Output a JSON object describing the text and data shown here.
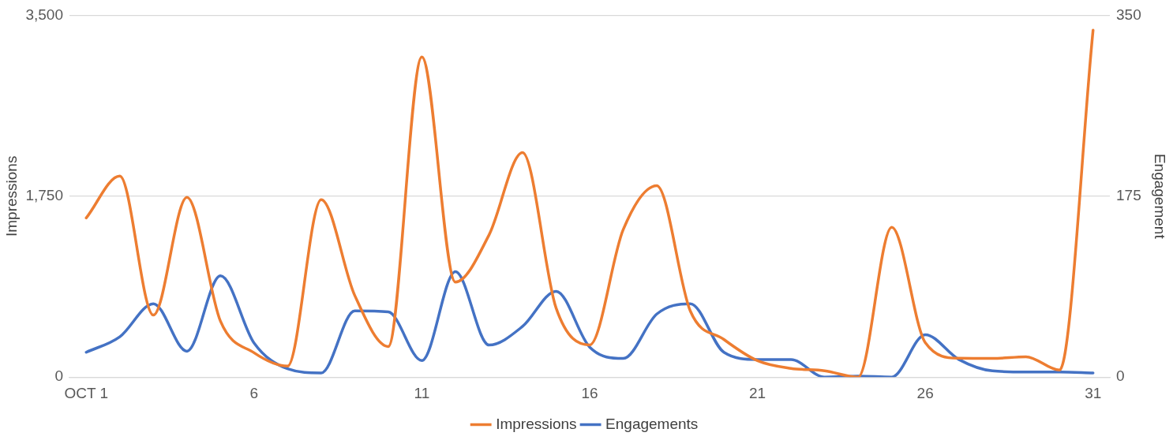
{
  "chart_data": {
    "type": "line",
    "ylabel": "Impressions",
    "y2label": "Engagement",
    "categories": [
      "OCT 1",
      null,
      null,
      null,
      null,
      "6",
      null,
      null,
      null,
      null,
      "11",
      null,
      null,
      null,
      null,
      "16",
      null,
      null,
      null,
      null,
      "21",
      null,
      null,
      null,
      null,
      "26",
      null,
      null,
      null,
      null,
      "31"
    ],
    "series": [
      {
        "name": "Impressions",
        "color": "#ed7d31",
        "values": [
          1540,
          1944,
          600,
          1739,
          540,
          235,
          106,
          1716,
          790,
          296,
          3097,
          919,
          1374,
          2171,
          668,
          311,
          1427,
          1852,
          638,
          364,
          159,
          84,
          61,
          0,
          1450,
          334,
          182,
          180,
          197,
          68,
          3356
        ]
      },
      {
        "name": "Engagements",
        "color": "#4472c4",
        "axis": "y2",
        "values": [
          24,
          39,
          71,
          25,
          98,
          33,
          8,
          4,
          64,
          63,
          16,
          102,
          31,
          49,
          83,
          29,
          18,
          61,
          71,
          24,
          17,
          17,
          0,
          1,
          0,
          41,
          17,
          6,
          5,
          5,
          4
        ]
      }
    ],
    "ylim": [
      0,
      3500
    ],
    "yticks": [
      0,
      {
        "value": 1750,
        "label": "1,750"
      },
      {
        "value": 3500,
        "label": "3,500"
      }
    ],
    "y2lim": [
      0,
      350
    ],
    "y2ticks": [
      0,
      175,
      350
    ],
    "grid": "y",
    "legend": "bottom",
    "marker": "none",
    "line_style": "solid"
  }
}
